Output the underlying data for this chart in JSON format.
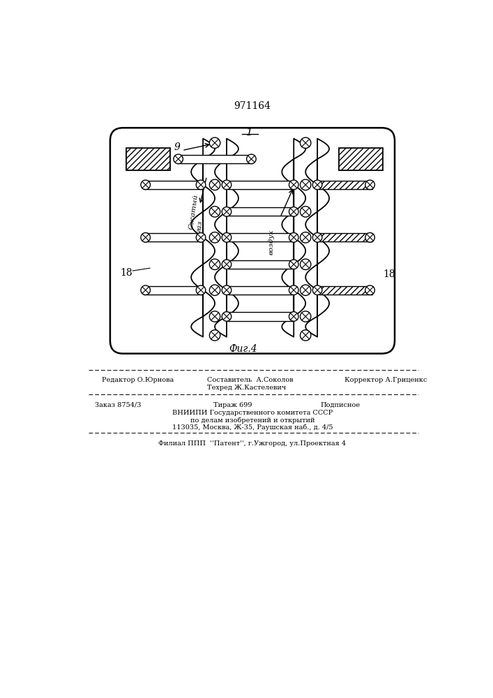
{
  "patent_number": "971164",
  "figure_label": "1",
  "figure_caption": "Фиг.4",
  "label_9": "9",
  "label_18_left": "18",
  "label_18_right": "18",
  "text_szhaty_gaz": "Сжатый\nгаз",
  "text_vozdukh": "воздух",
  "bottom_line1_left": "Редактор О.Юрнова",
  "bottom_line1_center": "Составитель  А.Соколов",
  "bottom_line1_center2": "Техред Ж.Кастелевич",
  "bottom_line1_right": "Корректор А.Гриценкс",
  "bottom_line2_left": "Заказ 8754/3",
  "bottom_line2_center": "Тираж 699",
  "bottom_line2_right": "Подписное",
  "bottom_line3": "ВНИИПИ Государственного комитета СССР",
  "bottom_line4": "по делам изобретений и открытий",
  "bottom_line5": "113035, Москва, Ж-35, Раушская наб., д. 4/5",
  "bottom_line6": "Филиал ППП  ''Патент'', г.Ужгород, ул.Проектная 4",
  "bg_color": "#ffffff",
  "line_color": "#000000"
}
